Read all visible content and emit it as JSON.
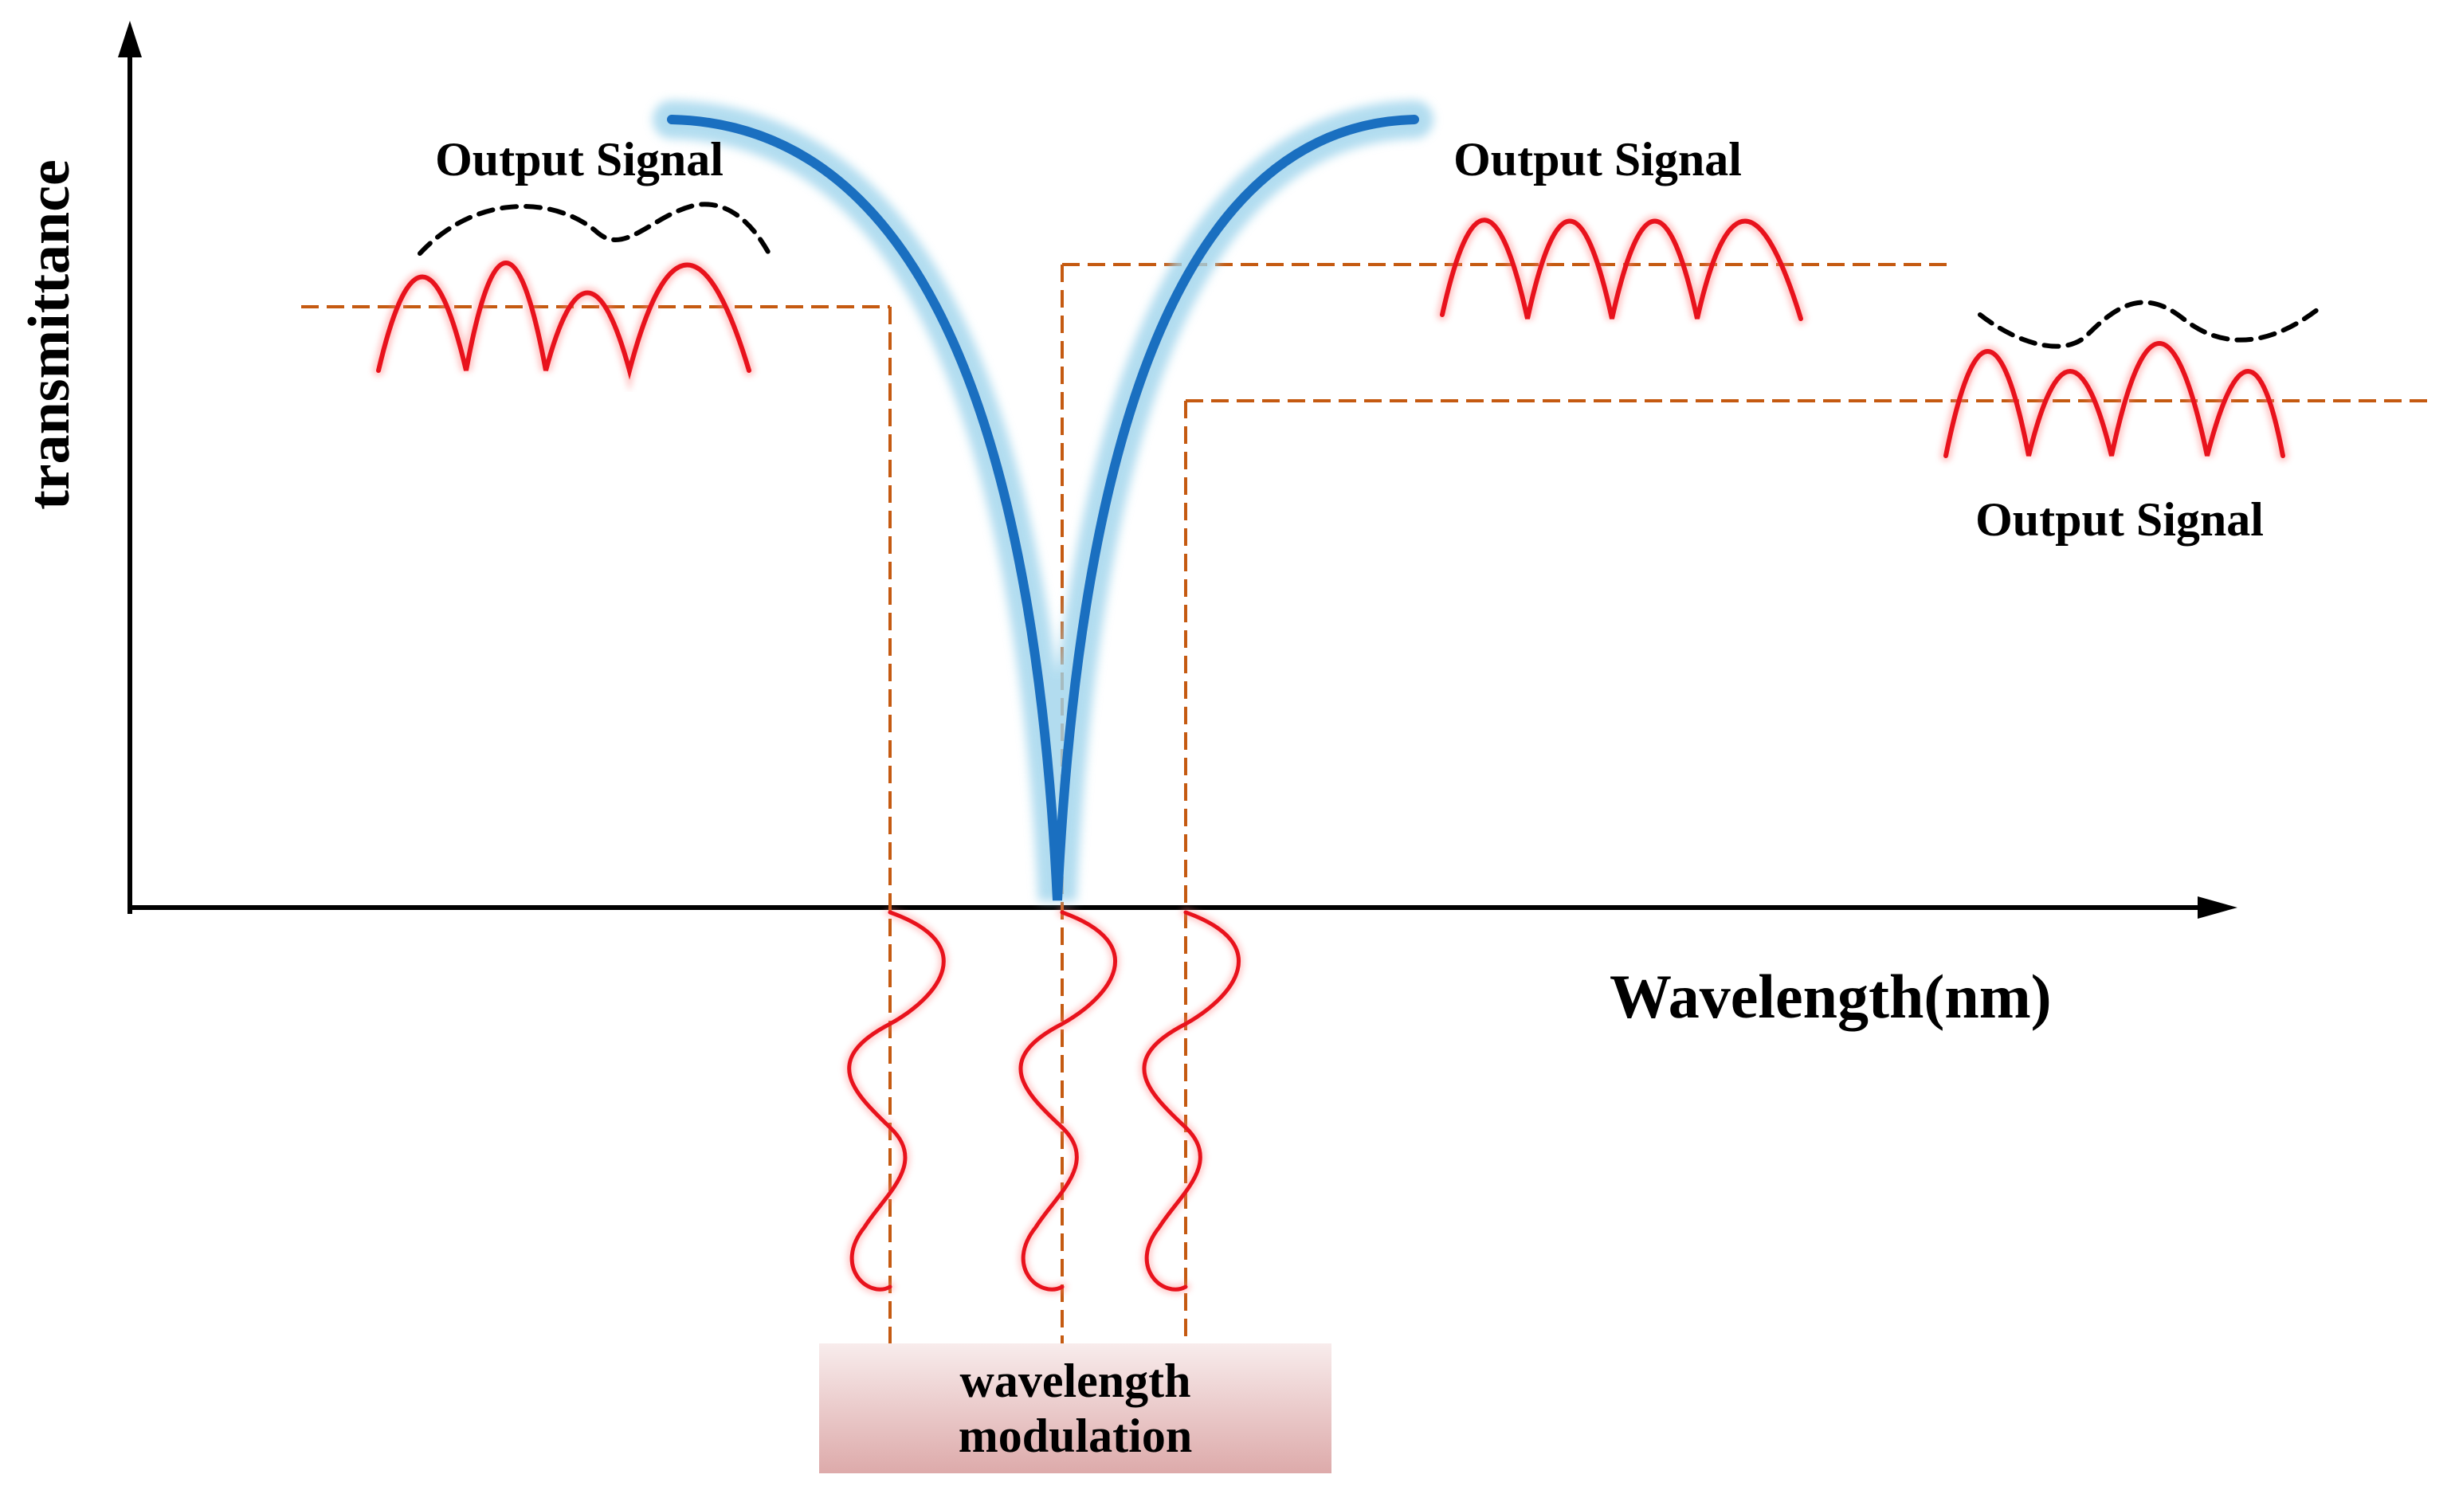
{
  "axes": {
    "x_label": "Wavelength(nm)",
    "y_label": "transmittance"
  },
  "outputs": [
    {
      "id": "left",
      "label": "Output Signal"
    },
    {
      "id": "center",
      "label": "Output Signal"
    },
    {
      "id": "right",
      "label": "Output Signal"
    }
  ],
  "modulation": {
    "line1": "wavelength",
    "line2": "modulation"
  },
  "colors": {
    "curve": "#1a6fc0",
    "curve_glow": "#9fd4ec",
    "signal": "#e8121c",
    "guide": "#c55a11",
    "envelope": "#000000",
    "axis": "#000000"
  }
}
